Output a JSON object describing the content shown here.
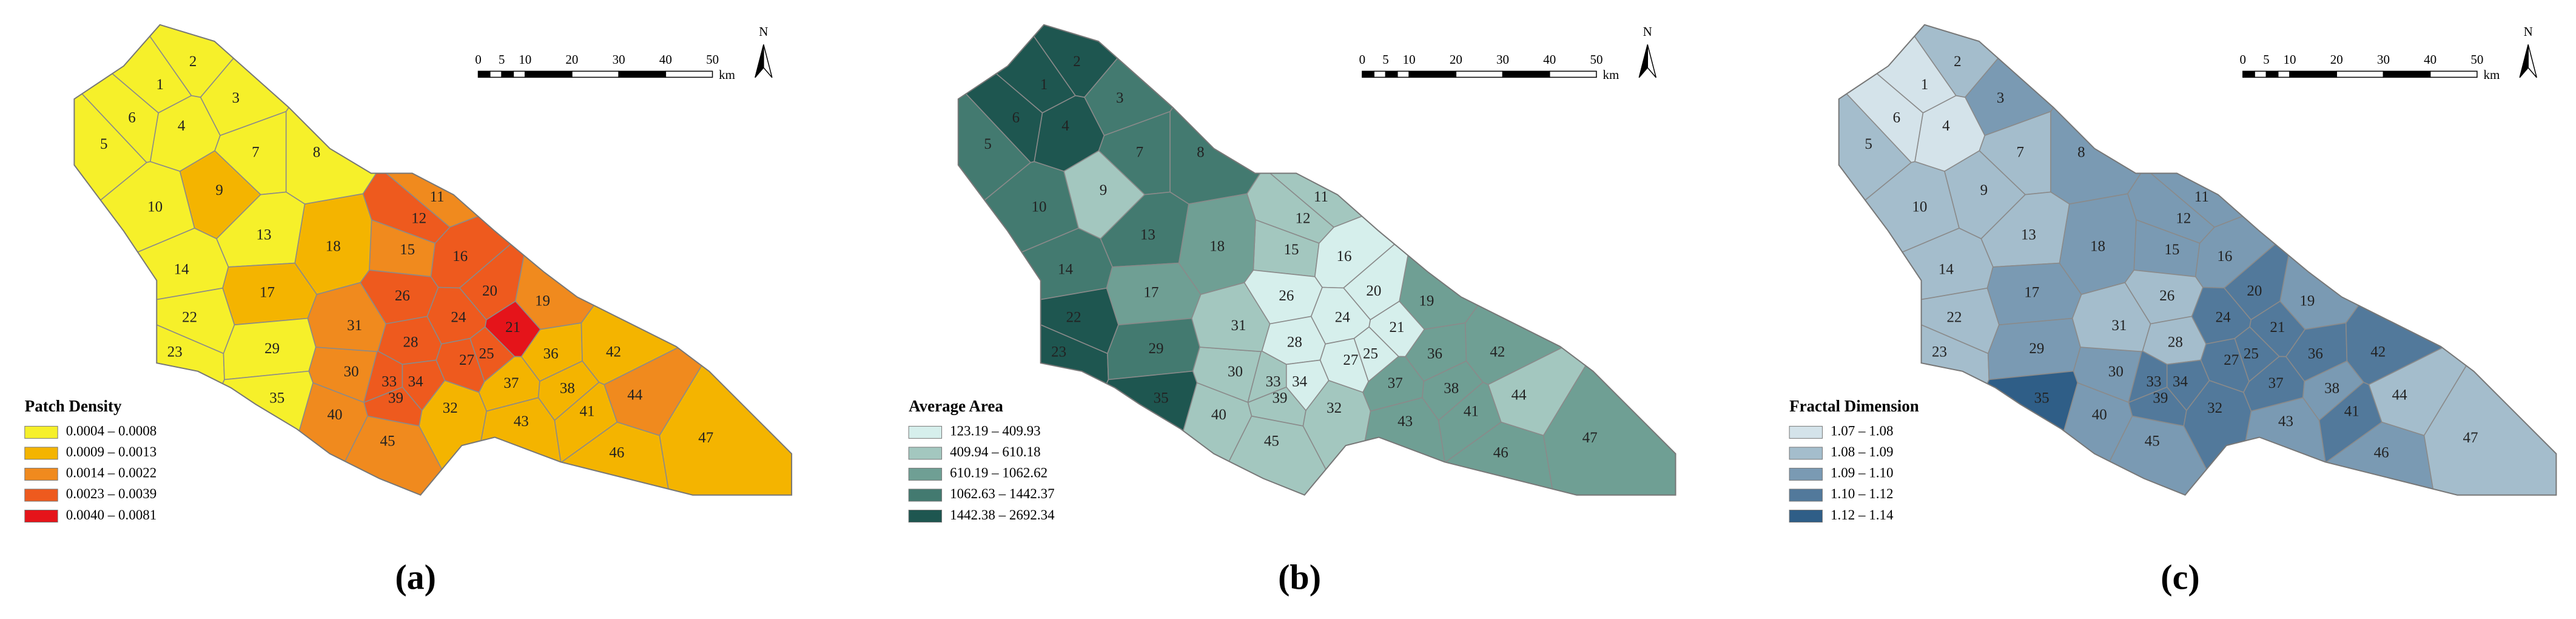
{
  "panels": [
    {
      "label": "(a)",
      "legend": {
        "title": "Patch Density",
        "entries": [
          "0.0004 – 0.0008",
          "0.0009 – 0.0013",
          "0.0014 – 0.0022",
          "0.0023 – 0.0039",
          "0.0040 – 0.0081"
        ],
        "colors": [
          "#f6f02a",
          "#f4b400",
          "#f08a1e",
          "#ee5a1e",
          "#e5141a"
        ]
      },
      "regions": [
        "1",
        "2",
        "3",
        "4",
        "5",
        "6",
        "7",
        "8",
        "9",
        "10",
        "11",
        "12",
        "13",
        "14",
        "15",
        "16",
        "17",
        "18",
        "19",
        "20",
        "21",
        "22",
        "23",
        "24",
        "25",
        "26",
        "27",
        "28",
        "29",
        "30",
        "31",
        "32",
        "33",
        "34",
        "35",
        "36",
        "37",
        "38",
        "39",
        "40",
        "41",
        "42",
        "43",
        "44",
        "45",
        "46",
        "47"
      ],
      "classes": [
        0,
        0,
        0,
        0,
        0,
        0,
        0,
        0,
        1,
        0,
        2,
        3,
        0,
        0,
        2,
        3,
        1,
        1,
        2,
        3,
        4,
        0,
        0,
        3,
        3,
        3,
        3,
        3,
        0,
        2,
        2,
        1,
        3,
        3,
        0,
        1,
        1,
        1,
        3,
        2,
        1,
        1,
        1,
        2,
        2,
        1,
        1
      ]
    },
    {
      "label": "(b)",
      "legend": {
        "title": "Average Area",
        "entries": [
          "123.19 – 409.93",
          "409.94 – 610.18",
          "610.19 – 1062.62",
          "1062.63 – 1442.37",
          "1442.38 – 2692.34"
        ],
        "colors": [
          "#d6efec",
          "#a3c7bf",
          "#6f9f94",
          "#437a70",
          "#1e5650"
        ]
      },
      "regions": [
        "1",
        "2",
        "3",
        "4",
        "5",
        "6",
        "7",
        "8",
        "9",
        "10",
        "11",
        "12",
        "13",
        "14",
        "15",
        "16",
        "17",
        "18",
        "19",
        "20",
        "21",
        "22",
        "23",
        "24",
        "25",
        "26",
        "27",
        "28",
        "29",
        "30",
        "31",
        "32",
        "33",
        "34",
        "35",
        "36",
        "37",
        "38",
        "39",
        "40",
        "41",
        "42",
        "43",
        "44",
        "45",
        "46",
        "47"
      ],
      "classes": [
        4,
        4,
        3,
        4,
        3,
        4,
        3,
        3,
        1,
        3,
        1,
        1,
        3,
        3,
        1,
        0,
        2,
        2,
        2,
        0,
        0,
        4,
        4,
        0,
        0,
        0,
        0,
        0,
        3,
        1,
        1,
        1,
        1,
        0,
        4,
        2,
        2,
        2,
        1,
        1,
        2,
        2,
        2,
        1,
        1,
        2,
        2
      ]
    },
    {
      "label": "(c)",
      "legend": {
        "title": "Fractal Dimension",
        "entries": [
          "1.07 – 1.08",
          "1.08 – 1.09",
          "1.09 – 1.10",
          "1.10 – 1.12",
          "1.12 – 1.14"
        ],
        "colors": [
          "#d4e3ea",
          "#a4bdcc",
          "#7a9ab3",
          "#52799b",
          "#2f5e87"
        ]
      },
      "regions": [
        "1",
        "2",
        "3",
        "4",
        "5",
        "6",
        "7",
        "8",
        "9",
        "10",
        "11",
        "12",
        "13",
        "14",
        "15",
        "16",
        "17",
        "18",
        "19",
        "20",
        "21",
        "22",
        "23",
        "24",
        "25",
        "26",
        "27",
        "28",
        "29",
        "30",
        "31",
        "32",
        "33",
        "34",
        "35",
        "36",
        "37",
        "38",
        "39",
        "40",
        "41",
        "42",
        "43",
        "44",
        "45",
        "46",
        "47"
      ],
      "classes": [
        0,
        1,
        2,
        0,
        1,
        0,
        1,
        2,
        1,
        1,
        2,
        2,
        1,
        1,
        2,
        2,
        2,
        2,
        2,
        3,
        3,
        1,
        1,
        3,
        3,
        1,
        3,
        1,
        2,
        2,
        1,
        3,
        3,
        3,
        4,
        3,
        3,
        2,
        3,
        2,
        3,
        3,
        2,
        1,
        2,
        2,
        1
      ]
    }
  ],
  "scale_bar": {
    "ticks": [
      0,
      5,
      10,
      20,
      30,
      40,
      50
    ],
    "unit": "km"
  },
  "north": "N"
}
